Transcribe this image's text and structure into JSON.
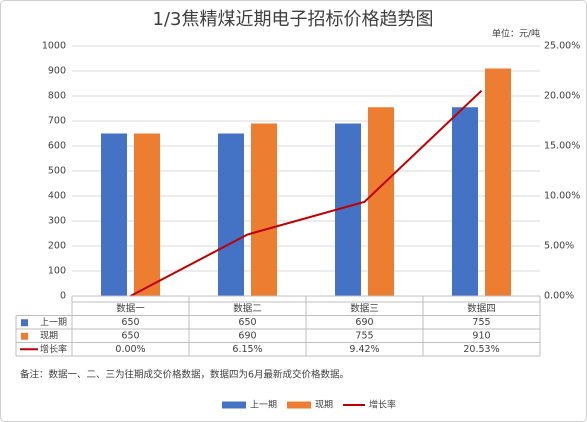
{
  "chart_data": {
    "type": "bar",
    "title": "1/3焦精煤近期电子招标价格趋势图",
    "unit": "单位：元/吨",
    "categories": [
      "数据一",
      "数据二",
      "数据三",
      "数据四"
    ],
    "series": [
      {
        "name": "上一期",
        "color": "#4472c4",
        "values": [
          650,
          650,
          690,
          755
        ]
      },
      {
        "name": "现期",
        "color": "#ed7d31",
        "values": [
          650,
          690,
          755,
          910
        ]
      },
      {
        "name": "增长率",
        "type": "line",
        "axis": "y2",
        "color": "#c00000",
        "values": [
          0,
          6.15,
          9.42,
          20.53
        ],
        "value_labels": [
          "0.00%",
          "6.15%",
          "9.42%",
          "20.53%"
        ]
      }
    ],
    "ylim": [
      0,
      1000
    ],
    "yticks": [
      0,
      100,
      200,
      300,
      400,
      500,
      600,
      700,
      800,
      900,
      1000
    ],
    "y2lim": [
      0,
      25
    ],
    "y2ticks": [
      {
        "value": 0,
        "label": "0.00%"
      },
      {
        "value": 5,
        "label": "5.00%"
      },
      {
        "value": 10,
        "label": "10.00%"
      },
      {
        "value": 15,
        "label": "15.00%"
      },
      {
        "value": 20,
        "label": "20.00%"
      },
      {
        "value": 25,
        "label": "25.00%"
      }
    ],
    "grid": true,
    "note": "备注：数据一、二、三为往期成交价格数据，数据四为6月最新成交价格数据。"
  }
}
